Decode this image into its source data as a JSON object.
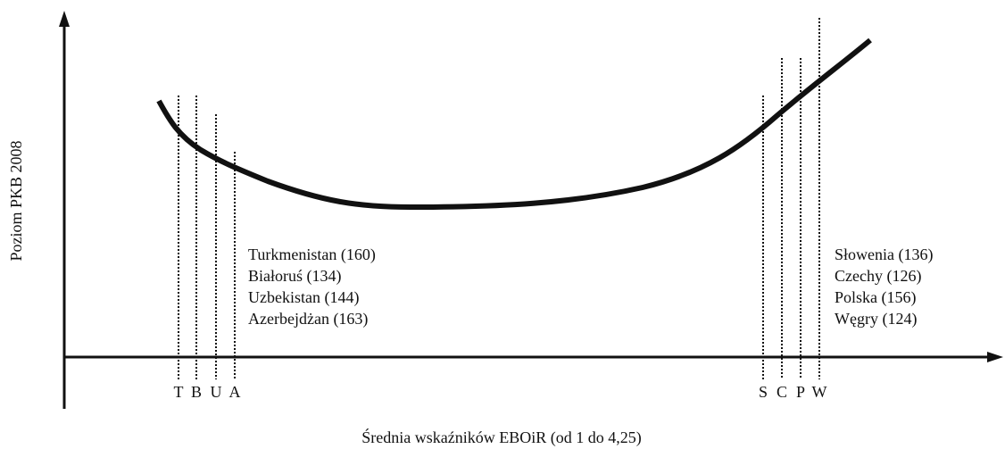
{
  "axes": {
    "y_label": "Poziom PKB 2008",
    "x_label": "Średnia wskaźników EBOiR (od 1 do 4,25)"
  },
  "left_group": {
    "markers": [
      "T",
      "B",
      "U",
      "A"
    ],
    "labels": [
      "Turkmenistan (160)",
      "Białoruś (134)",
      "Uzbekistan (144)",
      "Azerbejdżan (163)"
    ]
  },
  "right_group": {
    "markers": [
      "S",
      "C",
      "P",
      "W"
    ],
    "labels": [
      "Słowenia (136)",
      "Czechy (126)",
      "Polska (156)",
      "Węgry (124)"
    ]
  }
}
